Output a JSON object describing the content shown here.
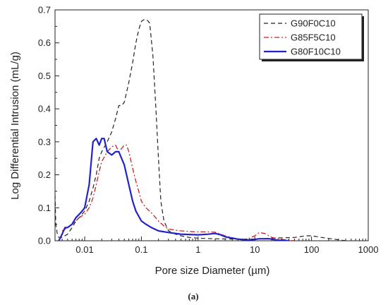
{
  "chart_data": {
    "type": "line",
    "xscale": "log",
    "xlabel": "Pore size Diameter (µm)",
    "ylabel": "Log Differential Intrusion (mL/g)",
    "xlim": [
      0.003,
      1000
    ],
    "ylim": [
      0,
      0.7
    ],
    "x_ticks": [
      0.01,
      0.1,
      1,
      10,
      100,
      1000
    ],
    "x_tick_labels": [
      "0.01",
      "0.1",
      "1",
      "10",
      "100",
      "1000"
    ],
    "y_ticks": [
      0.0,
      0.1,
      0.2,
      0.3,
      0.4,
      0.5,
      0.6,
      0.7
    ],
    "y_tick_labels": [
      "0.0",
      "0.1",
      "0.2",
      "0.3",
      "0.4",
      "0.5",
      "0.6",
      "0.7"
    ],
    "grid": false,
    "legend_position": "top-right",
    "caption": "(a)",
    "series": [
      {
        "name": "G90F0C10",
        "color": "#222222",
        "dash": "dashed",
        "points": [
          [
            0.003,
            0.14
          ],
          [
            0.0031,
            0.05
          ],
          [
            0.0033,
            0.02
          ],
          [
            0.0035,
            0.01
          ],
          [
            0.004,
            0.01
          ],
          [
            0.005,
            0.02
          ],
          [
            0.006,
            0.04
          ],
          [
            0.007,
            0.06
          ],
          [
            0.008,
            0.07
          ],
          [
            0.01,
            0.09
          ],
          [
            0.012,
            0.12
          ],
          [
            0.014,
            0.16
          ],
          [
            0.016,
            0.2
          ],
          [
            0.018,
            0.25
          ],
          [
            0.02,
            0.27
          ],
          [
            0.025,
            0.3
          ],
          [
            0.03,
            0.33
          ],
          [
            0.035,
            0.37
          ],
          [
            0.04,
            0.41
          ],
          [
            0.045,
            0.41
          ],
          [
            0.05,
            0.42
          ],
          [
            0.06,
            0.48
          ],
          [
            0.07,
            0.54
          ],
          [
            0.08,
            0.6
          ],
          [
            0.09,
            0.64
          ],
          [
            0.1,
            0.665
          ],
          [
            0.11,
            0.67
          ],
          [
            0.125,
            0.67
          ],
          [
            0.14,
            0.66
          ],
          [
            0.16,
            0.56
          ],
          [
            0.18,
            0.4
          ],
          [
            0.2,
            0.25
          ],
          [
            0.22,
            0.12
          ],
          [
            0.25,
            0.06
          ],
          [
            0.3,
            0.03
          ],
          [
            0.4,
            0.02
          ],
          [
            0.5,
            0.015
          ],
          [
            0.7,
            0.01
          ],
          [
            1,
            0.008
          ],
          [
            2,
            0.006
          ],
          [
            5,
            0.005
          ],
          [
            10,
            0.005
          ],
          [
            20,
            0.008
          ],
          [
            50,
            0.01
          ],
          [
            80,
            0.015
          ],
          [
            100,
            0.015
          ],
          [
            150,
            0.01
          ],
          [
            200,
            0.007
          ],
          [
            300,
            0.003
          ],
          [
            400,
            0.0
          ]
        ]
      },
      {
        "name": "G85F5C10",
        "color": "#cc2222",
        "dash": "dashdot",
        "points": [
          [
            0.004,
            0.03
          ],
          [
            0.005,
            0.04
          ],
          [
            0.006,
            0.05
          ],
          [
            0.007,
            0.06
          ],
          [
            0.008,
            0.07
          ],
          [
            0.01,
            0.08
          ],
          [
            0.012,
            0.1
          ],
          [
            0.014,
            0.13
          ],
          [
            0.016,
            0.17
          ],
          [
            0.018,
            0.21
          ],
          [
            0.02,
            0.24
          ],
          [
            0.025,
            0.27
          ],
          [
            0.03,
            0.285
          ],
          [
            0.035,
            0.29
          ],
          [
            0.04,
            0.27
          ],
          [
            0.045,
            0.28
          ],
          [
            0.05,
            0.29
          ],
          [
            0.055,
            0.29
          ],
          [
            0.06,
            0.27
          ],
          [
            0.07,
            0.22
          ],
          [
            0.08,
            0.18
          ],
          [
            0.09,
            0.15
          ],
          [
            0.1,
            0.12
          ],
          [
            0.12,
            0.1
          ],
          [
            0.15,
            0.085
          ],
          [
            0.2,
            0.06
          ],
          [
            0.25,
            0.045
          ],
          [
            0.3,
            0.035
          ],
          [
            0.5,
            0.03
          ],
          [
            0.7,
            0.028
          ],
          [
            1,
            0.027
          ],
          [
            1.5,
            0.027
          ],
          [
            2,
            0.026
          ],
          [
            3,
            0.015
          ],
          [
            5,
            0.005
          ],
          [
            7,
            0.003
          ],
          [
            10,
            0.015
          ],
          [
            12,
            0.025
          ],
          [
            15,
            0.022
          ],
          [
            20,
            0.01
          ],
          [
            30,
            0.004
          ],
          [
            50,
            0.0
          ]
        ]
      },
      {
        "name": "G80F10C10",
        "color": "#2222cc",
        "dash": "solid",
        "points": [
          [
            0.0035,
            0.0
          ],
          [
            0.004,
            0.02
          ],
          [
            0.0045,
            0.04
          ],
          [
            0.005,
            0.04
          ],
          [
            0.006,
            0.05
          ],
          [
            0.007,
            0.07
          ],
          [
            0.008,
            0.08
          ],
          [
            0.009,
            0.09
          ],
          [
            0.01,
            0.1
          ],
          [
            0.012,
            0.17
          ],
          [
            0.014,
            0.3
          ],
          [
            0.016,
            0.31
          ],
          [
            0.018,
            0.29
          ],
          [
            0.02,
            0.31
          ],
          [
            0.022,
            0.31
          ],
          [
            0.025,
            0.27
          ],
          [
            0.03,
            0.26
          ],
          [
            0.035,
            0.27
          ],
          [
            0.04,
            0.27
          ],
          [
            0.05,
            0.23
          ],
          [
            0.06,
            0.17
          ],
          [
            0.07,
            0.12
          ],
          [
            0.08,
            0.09
          ],
          [
            0.1,
            0.06
          ],
          [
            0.12,
            0.05
          ],
          [
            0.15,
            0.04
          ],
          [
            0.2,
            0.03
          ],
          [
            0.3,
            0.025
          ],
          [
            0.5,
            0.02
          ],
          [
            1,
            0.018
          ],
          [
            1.5,
            0.02
          ],
          [
            2,
            0.022
          ],
          [
            2.5,
            0.018
          ],
          [
            3,
            0.012
          ],
          [
            5,
            0.005
          ],
          [
            8,
            0.002
          ],
          [
            12,
            0.006
          ],
          [
            18,
            0.006
          ],
          [
            25,
            0.002
          ],
          [
            40,
            0.0
          ]
        ]
      }
    ]
  }
}
